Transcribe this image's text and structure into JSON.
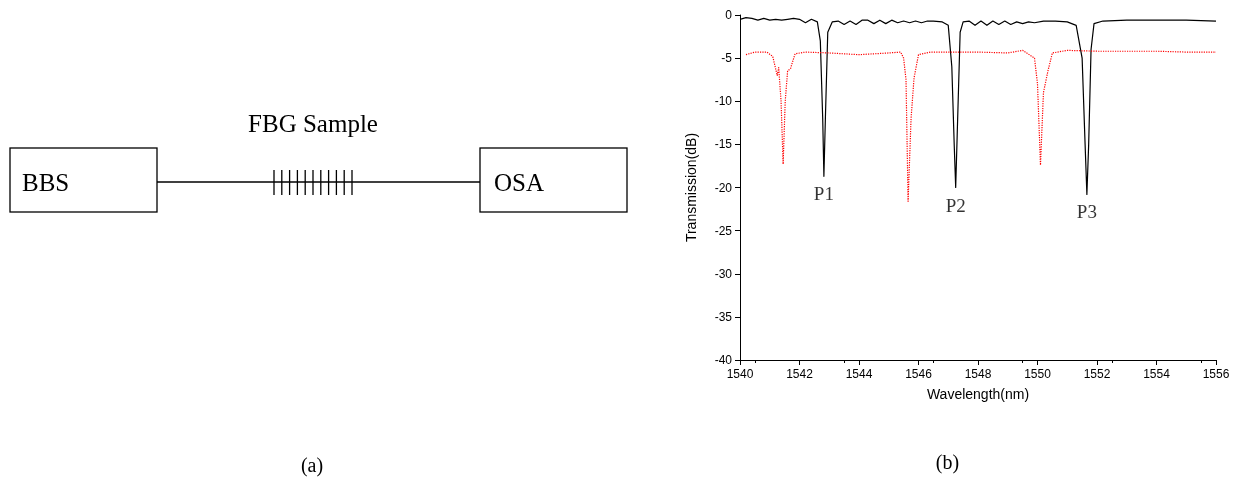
{
  "chart_data": [
    {
      "type": "other",
      "annotations": [
        "BBS",
        "OSA",
        "FBG Sample",
        "(a)"
      ]
    },
    {
      "type": "line",
      "xlabel": "Wavelength(nm)",
      "ylabel": "Transmission(dB)",
      "xlim": [
        1540,
        1556
      ],
      "xticks": [
        1540,
        1542,
        1544,
        1546,
        1548,
        1550,
        1552,
        1554,
        1556
      ],
      "ylim": [
        -40,
        0
      ],
      "yticks": [
        -40,
        -35,
        -30,
        -25,
        -20,
        -15,
        -10,
        -5,
        0
      ],
      "grid": false,
      "marker": "none",
      "series": [
        {
          "color": "#000000",
          "line_style": "solid",
          "x": [
            1540.0,
            1540.2,
            1540.4,
            1540.6,
            1540.8,
            1541.0,
            1541.2,
            1541.4,
            1541.6,
            1541.8,
            1542.0,
            1542.2,
            1542.4,
            1542.6,
            1542.7,
            1542.78,
            1542.82,
            1542.87,
            1542.95,
            1543.1,
            1543.3,
            1543.5,
            1543.7,
            1543.9,
            1544.1,
            1544.3,
            1544.5,
            1544.7,
            1544.9,
            1545.1,
            1545.3,
            1545.5,
            1545.7,
            1545.9,
            1546.1,
            1546.3,
            1546.5,
            1546.8,
            1547.0,
            1547.12,
            1547.2,
            1547.25,
            1547.3,
            1547.4,
            1547.5,
            1547.7,
            1547.9,
            1548.1,
            1548.3,
            1548.5,
            1548.7,
            1548.9,
            1549.1,
            1549.3,
            1549.5,
            1549.7,
            1549.9,
            1550.2,
            1550.6,
            1551.0,
            1551.3,
            1551.5,
            1551.6,
            1551.66,
            1551.72,
            1551.8,
            1551.9,
            1552.2,
            1553,
            1554,
            1555,
            1556
          ],
          "values": [
            -0.5,
            -0.3,
            -0.4,
            -0.6,
            -0.4,
            -0.6,
            -0.5,
            -0.6,
            -0.5,
            -0.4,
            -0.5,
            -0.9,
            -0.5,
            -0.8,
            -3,
            -12,
            -18.7,
            -12,
            -2,
            -0.8,
            -0.7,
            -1.1,
            -0.7,
            -1.1,
            -0.6,
            -0.6,
            -1.0,
            -0.6,
            -1.0,
            -0.6,
            -0.9,
            -0.7,
            -0.9,
            -0.7,
            -0.9,
            -0.7,
            -0.7,
            -0.8,
            -1.2,
            -6,
            -15,
            -20,
            -14,
            -2,
            -0.8,
            -0.7,
            -1.2,
            -0.7,
            -1.2,
            -0.7,
            -1.1,
            -0.7,
            -1.1,
            -0.8,
            -1.0,
            -0.8,
            -0.9,
            -0.7,
            -0.7,
            -0.8,
            -1.2,
            -5,
            -15,
            -20.8,
            -15,
            -4,
            -1.0,
            -0.7,
            -0.6,
            -0.6,
            -0.6,
            -0.7
          ]
        },
        {
          "color": "#ff0000",
          "line_style": "dotted",
          "x": [
            1540.2,
            1540.5,
            1540.9,
            1541.1,
            1541.25,
            1541.3,
            1541.38,
            1541.45,
            1541.52,
            1541.6,
            1541.7,
            1541.85,
            1542.2,
            1543,
            1544,
            1545,
            1545.4,
            1545.5,
            1545.58,
            1545.65,
            1545.75,
            1545.85,
            1546.0,
            1546.4,
            1547,
            1548,
            1549,
            1549.5,
            1549.9,
            1550.0,
            1550.1,
            1550.2,
            1550.35,
            1550.5,
            1551,
            1552,
            1553,
            1554,
            1555,
            1556
          ],
          "values": [
            -4.6,
            -4.3,
            -4.3,
            -4.8,
            -7.0,
            -6.1,
            -10,
            -17.3,
            -10,
            -6.5,
            -6.2,
            -4.5,
            -4.3,
            -4.4,
            -4.6,
            -4.4,
            -4.3,
            -5.0,
            -7.5,
            -21.6,
            -12,
            -7.3,
            -4.6,
            -4.3,
            -4.3,
            -4.3,
            -4.4,
            -4.1,
            -5.0,
            -8,
            -17.4,
            -9,
            -6.5,
            -4.4,
            -4.1,
            -4.2,
            -4.2,
            -4.2,
            -4.3,
            -4.3
          ]
        }
      ],
      "annotations": [
        {
          "text": "P1",
          "x": 1542.82,
          "y": -18.7
        },
        {
          "text": "P2",
          "x": 1547.25,
          "y": -20
        },
        {
          "text": "P3",
          "x": 1551.66,
          "y": -20.8
        },
        "(b)"
      ]
    }
  ]
}
